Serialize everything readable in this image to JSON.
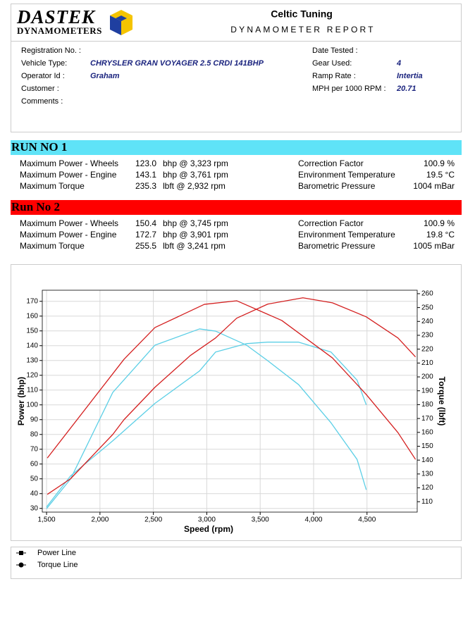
{
  "header": {
    "logo": [
      "DASTEK",
      "DYNAMOMETERS"
    ],
    "title": "Celtic Tuning",
    "subtitle": "DYNAMOMETER REPORT"
  },
  "info": {
    "left": [
      {
        "label": "Registration No. :"
      },
      {
        "label": "Vehicle Type:",
        "value": "CHRYSLER GRAN VOYAGER 2.5 CRDI 141BHP"
      },
      {
        "label": "Operator Id :",
        "value": "Graham"
      },
      {
        "label": "Customer :"
      },
      {
        "label": "Comments :"
      }
    ],
    "right": [
      {
        "label": "Date Tested :"
      },
      {
        "label": "Gear Used:",
        "value": "4"
      },
      {
        "label": "Ramp Rate :",
        "value": "Intertia"
      },
      {
        "label": "MPH per 1000 RPM :",
        "value": "20.71"
      }
    ]
  },
  "runs": [
    {
      "title": "RUN NO 1",
      "color": "#5fe3f7",
      "rows": [
        {
          "label": "Maximum Power - Wheels",
          "value": "123.0",
          "unit": "bhp @ 3,323 rpm",
          "right_label": "Correction Factor",
          "right_value": "100.9 %"
        },
        {
          "label": "Maximum Power - Engine",
          "value": "143.1",
          "unit": "bhp @ 3,761 rpm",
          "right_label": "Environment Temperature",
          "right_value": "19.5 °C"
        },
        {
          "label": "Maximum Torque",
          "value": "235.3",
          "unit": "lbft @ 2,932 rpm",
          "right_label": "Barometric Pressure",
          "right_value": "1004 mBar"
        }
      ]
    },
    {
      "title": "Run No 2",
      "color": "#ff0000",
      "rows": [
        {
          "label": "Maximum Power - Wheels",
          "value": "150.4",
          "unit": "bhp @ 3,745 rpm",
          "right_label": "Correction Factor",
          "right_value": "100.9 %"
        },
        {
          "label": "Maximum Power - Engine",
          "value": "172.7",
          "unit": "bhp @ 3,901 rpm",
          "right_label": "Environment Temperature",
          "right_value": "19.8 °C"
        },
        {
          "label": "Maximum Torque",
          "value": "255.5",
          "unit": "lbft @ 3,241 rpm",
          "right_label": "Barometric Pressure",
          "right_value": "1005 mBar"
        }
      ]
    }
  ],
  "chart_data": {
    "type": "line",
    "x_label": "Speed (rpm)",
    "y_label": "Power (bhp)",
    "y2_label": "Torque (lbft)",
    "xlim": [
      1460,
      4970
    ],
    "ylim": [
      27.5,
      177.5
    ],
    "y2lim": [
      102.5,
      262.5
    ],
    "xticks": [
      {
        "value": 1500,
        "label": "1,500"
      },
      {
        "value": 2000,
        "label": "2,000"
      },
      {
        "value": 2500,
        "label": "2,500"
      },
      {
        "value": 3000,
        "label": "3,000"
      },
      {
        "value": 3500,
        "label": "3,500"
      },
      {
        "value": 4000,
        "label": "4,000"
      },
      {
        "value": 4500,
        "label": "4,500"
      }
    ],
    "yticks": [
      30,
      40,
      50,
      60,
      70,
      80,
      90,
      100,
      110,
      120,
      130,
      140,
      150,
      160,
      170
    ],
    "y2ticks": [
      110,
      120,
      130,
      140,
      150,
      160,
      170,
      180,
      190,
      200,
      210,
      220,
      230,
      240,
      250,
      260
    ],
    "grid": true,
    "series": [
      {
        "color": "#5ccfe6",
        "x": [
          1500,
          1724,
          2120,
          2515,
          2932,
          3082,
          3372,
          3570,
          3860,
          4163,
          4407,
          4493
        ],
        "values": [
          31,
          51.9,
          75.7,
          101,
          122.9,
          135.7,
          141.4,
          142.4,
          142.4,
          135.7,
          116.7,
          100
        ]
      },
      {
        "color": "#5ccfe6",
        "axis": "y2",
        "x": [
          1500,
          1724,
          2120,
          2515,
          2932,
          3082,
          3372,
          3570,
          3860,
          4163,
          4407,
          4493
        ],
        "values": [
          105,
          126.3,
          188.8,
          222.9,
          234.6,
          233,
          222.9,
          211.7,
          194.4,
          166.9,
          140.5,
          118.6
        ]
      },
      {
        "color": "#d42020",
        "x": [
          1507,
          1724,
          2120,
          2225,
          2515,
          2845,
          3082,
          3280,
          3570,
          3900,
          4176,
          4493,
          4790,
          4954
        ],
        "values": [
          39.5,
          50,
          80,
          90,
          111.9,
          133.3,
          145.2,
          158.6,
          168.1,
          172.4,
          169,
          159.5,
          145.2,
          132.4
        ]
      },
      {
        "color": "#d42020",
        "axis": "y2",
        "x": [
          1507,
          2225,
          2515,
          2977,
          3280,
          3702,
          4176,
          4493,
          4790,
          4954
        ],
        "values": [
          141.5,
          212.7,
          235.6,
          252.3,
          254.9,
          240.7,
          213.7,
          187.3,
          159.8,
          140.5
        ]
      }
    ]
  },
  "legend": [
    "Power Line",
    "Torque Line"
  ]
}
